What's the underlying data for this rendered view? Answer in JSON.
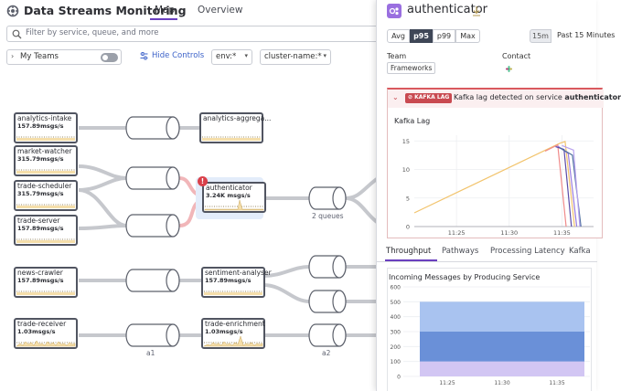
{
  "app": {
    "title": "Data Streams Monitoring",
    "tabs": [
      {
        "label": "Map",
        "active": true
      },
      {
        "label": "Overview",
        "active": false
      }
    ],
    "accent_color": "#6a3fbf"
  },
  "filter": {
    "placeholder": "Filter by service, queue, and more"
  },
  "controls": {
    "my_teams": "My Teams",
    "my_teams_toggle": false,
    "hide_controls": "Hide Controls",
    "env": "env:*",
    "cluster": "cluster-name:*"
  },
  "map": {
    "nodes": [
      {
        "name": "analytics-intake",
        "rate": "157.89msgs/s"
      },
      {
        "name": "market-watcher",
        "rate": "315.79msgs/s"
      },
      {
        "name": "trade-scheduler",
        "rate": "315.79msgs/s"
      },
      {
        "name": "trade-server",
        "rate": "157.89msgs/s"
      },
      {
        "name": "analytics-aggrega...",
        "rate": ""
      },
      {
        "name": "authenticator",
        "rate": "3.24K msgs/s",
        "alert": true
      },
      {
        "name": "news-crawler",
        "rate": "157.89msgs/s"
      },
      {
        "name": "sentiment-analyser",
        "rate": "157.89msgs/s"
      },
      {
        "name": "trade-receiver",
        "rate": "1.03msgs/s"
      },
      {
        "name": "trade-enrichment",
        "rate": "1.03msgs/s"
      }
    ],
    "queue_labels": [
      "2 queues",
      "a1",
      "a2"
    ],
    "alert_color": "#d9595e"
  },
  "panel": {
    "service": "authenticator",
    "stat_options": [
      "Avg",
      "p95",
      "p99",
      "Max"
    ],
    "selected_stat": "p95",
    "range_chip": "15m",
    "range_label": "Past 15 Minutes",
    "team_label": "Team",
    "team_value": "Frameworks",
    "contact_label": "Contact",
    "alert": {
      "badge": "KAFKA LAG",
      "text_prefix": "Kafka lag detected on service ",
      "service": "authenticator"
    },
    "tabs": [
      "Throughput",
      "Pathways",
      "Processing Latency",
      "Kafka"
    ],
    "active_tab": "Throughput"
  },
  "chart_data": [
    {
      "type": "line",
      "title": "Kafka Lag",
      "x_ticks": [
        "11:25",
        "11:30",
        "11:35"
      ],
      "y_ticks": [
        0,
        5,
        10,
        15
      ],
      "ylim": [
        0,
        16
      ],
      "x_domain": [
        "11:21",
        "11:38"
      ],
      "series": [
        {
          "color": "#f2c46d",
          "points": [
            [
              "11:21",
              2.4
            ],
            [
              "11:34.8",
              14.6
            ],
            [
              "11:35.3",
              14.9
            ],
            [
              "11:36.2",
              0
            ]
          ]
        },
        {
          "color": "#f08a8a",
          "points": [
            [
              "11:33.4",
              13.2
            ],
            [
              "11:34.6",
              14.3
            ],
            [
              "11:35.4",
              0
            ]
          ]
        },
        {
          "color": "#9a7de0",
          "points": [
            [
              "11:34.6",
              14.1
            ],
            [
              "11:35.6",
              12.8
            ],
            [
              "11:36.4",
              0
            ]
          ]
        },
        {
          "color": "#5a4aa8",
          "points": [
            [
              "11:34.4",
              14.0
            ],
            [
              "11:35.2",
              13.5
            ],
            [
              "11:35.9",
              0
            ]
          ]
        },
        {
          "color": "#4e6f9f",
          "points": [
            [
              "11:34.8",
              13.8
            ],
            [
              "11:36.0",
              12.5
            ],
            [
              "11:36.8",
              0
            ]
          ]
        },
        {
          "color": "#b9a2ee",
          "points": [
            [
              "11:35.0",
              14.2
            ],
            [
              "11:36.1",
              13.4
            ],
            [
              "11:36.7",
              0
            ]
          ]
        }
      ],
      "grid": true
    },
    {
      "type": "area",
      "title": "Incoming Messages by Producing Service",
      "x_ticks": [
        "11:25",
        "11:30",
        "11:35"
      ],
      "y_ticks": [
        0,
        100,
        200,
        300,
        400,
        500,
        600
      ],
      "ylim": [
        0,
        600
      ],
      "x_domain": [
        "11:21",
        "11:38"
      ],
      "data_x_range": [
        "11:22.5",
        "11:37.5"
      ],
      "stacked": true,
      "series": [
        {
          "color": "#d2c6f3",
          "values": 100
        },
        {
          "color": "#6a90d8",
          "values": 200
        },
        {
          "color": "#a9c3f0",
          "values": 200
        }
      ],
      "grid": true
    }
  ]
}
